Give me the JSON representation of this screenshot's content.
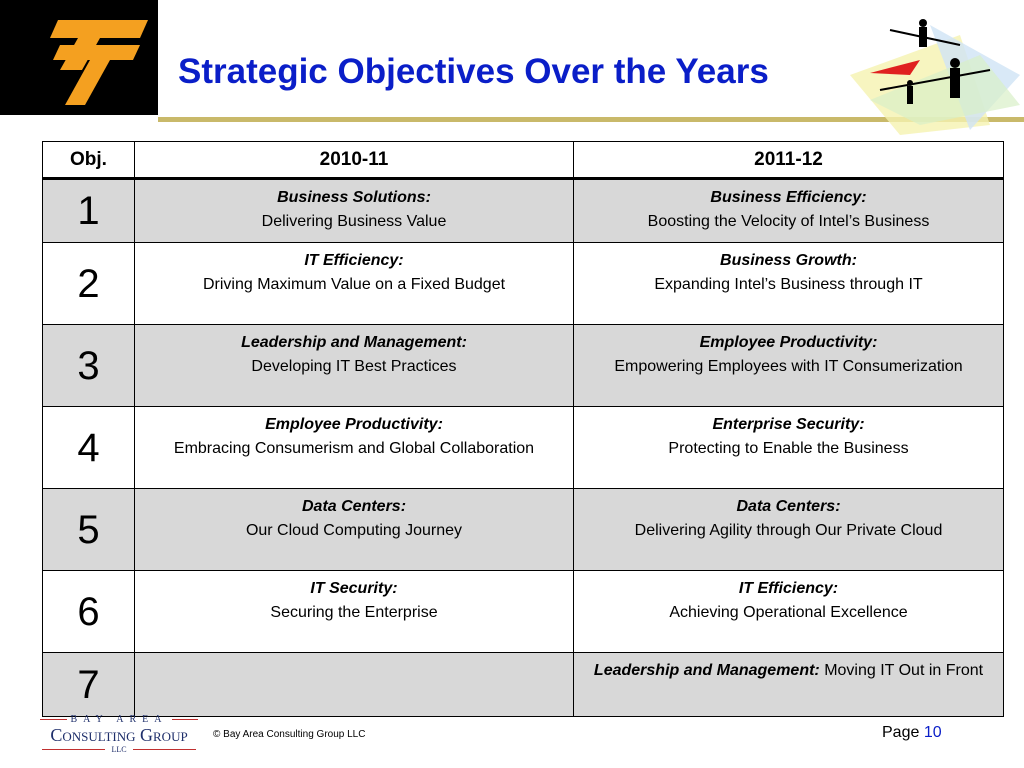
{
  "header": {
    "title": "Strategic Objectives Over the Years"
  },
  "table": {
    "headers": [
      "Obj.",
      "2010-11",
      "2011-12"
    ],
    "rows": [
      [
        "1",
        {
          "heading": "Business Solutions:",
          "text": "Delivering Business Value"
        },
        {
          "heading": "Business Efficiency:",
          "text": "Boosting the Velocity of Intel’s Business"
        }
      ],
      [
        "2",
        {
          "heading": "IT Efficiency:",
          "text": "Driving Maximum Value on a Fixed Budget"
        },
        {
          "heading": "Business Growth:",
          "text": "Expanding Intel’s Business through IT"
        }
      ],
      [
        "3",
        {
          "heading": "Leadership and Management:",
          "text": "Developing IT Best Practices"
        },
        {
          "heading": "Employee Productivity:",
          "text": "Empowering Employees with IT Consumerization"
        }
      ],
      [
        "4",
        {
          "heading": "Employee Productivity:",
          "text": "Embracing Consumerism and Global Collaboration"
        },
        {
          "heading": "Enterprise Security:",
          "text": "Protecting to Enable the Business"
        }
      ],
      [
        "5",
        {
          "heading": "Data Centers:",
          "text": "Our Cloud Computing Journey"
        },
        {
          "heading": "Data Centers:",
          "text": "Delivering Agility through Our Private Cloud"
        }
      ],
      [
        "6",
        {
          "heading": "IT Security:",
          "text": "Securing the Enterprise"
        },
        {
          "heading": "IT Efficiency:",
          "text": "Achieving Operational Excellence"
        }
      ],
      [
        "7",
        null,
        {
          "run_in": "Leadership and Management:",
          "text": "Moving IT Out in Front"
        }
      ]
    ]
  },
  "footer": {
    "logo": {
      "top": "BAY AREA",
      "main": "Consulting Group",
      "bottom": "LLC"
    },
    "copyright": "© Bay Area Consulting Group LLC",
    "page_label": "Page",
    "page_number": "10"
  }
}
